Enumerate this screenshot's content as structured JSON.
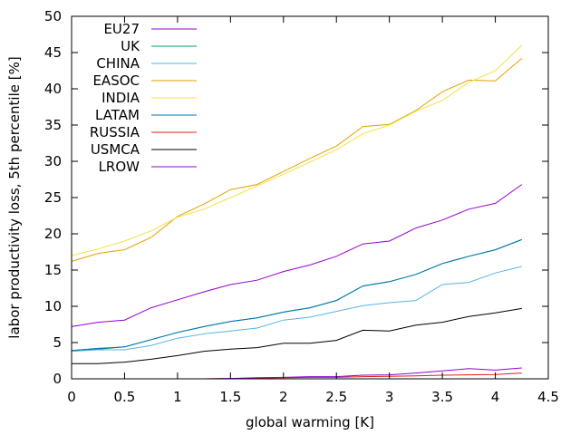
{
  "chart_data": {
    "type": "line",
    "title": "",
    "xlabel": "global warming [K]",
    "ylabel": "labor productivity loss, 5th percentile [%]",
    "xlim": [
      0,
      4.5
    ],
    "ylim": [
      0,
      50
    ],
    "xticks": [
      0,
      0.5,
      1,
      1.5,
      2,
      2.5,
      3,
      3.5,
      4,
      4.5
    ],
    "xtick_labels": [
      "0",
      "0.5",
      "1",
      "1.5",
      "2",
      "2.5",
      "3",
      "3.5",
      "4",
      "4.5"
    ],
    "yticks": [
      0,
      5,
      10,
      15,
      20,
      25,
      30,
      35,
      40,
      45,
      50
    ],
    "ytick_labels": [
      "0",
      "5",
      "10",
      "15",
      "20",
      "25",
      "30",
      "35",
      "40",
      "45",
      "50"
    ],
    "grid": false,
    "legend_placement": "top-left",
    "x": [
      0,
      0.25,
      0.5,
      0.75,
      1,
      1.25,
      1.5,
      1.75,
      2,
      2.25,
      2.5,
      2.75,
      3,
      3.25,
      3.5,
      3.75,
      4,
      4.25
    ],
    "series": [
      {
        "name": "EU27",
        "color": "#9400d3",
        "values": [
          7.2,
          7.8,
          8.1,
          9.8,
          10.9,
          12.0,
          13.0,
          13.6,
          14.8,
          15.7,
          16.9,
          18.6,
          19.0,
          20.8,
          21.9,
          23.4,
          24.2,
          26.8
        ]
      },
      {
        "name": "UK",
        "color": "#009e73",
        "values": [
          3.8,
          4.1,
          4.4,
          5.4,
          6.4,
          7.2,
          7.9,
          8.4,
          9.2,
          9.8,
          10.8,
          12.8,
          13.4,
          14.4,
          15.9,
          16.9,
          17.8,
          19.2
        ]
      },
      {
        "name": "CHINA",
        "color": "#56b4e9",
        "values": [
          3.8,
          4.0,
          4.0,
          4.6,
          5.6,
          6.2,
          6.6,
          7.0,
          8.1,
          8.5,
          9.3,
          10.1,
          10.5,
          10.8,
          13.0,
          13.3,
          14.6,
          15.5
        ]
      },
      {
        "name": "EASOC",
        "color": "#e69f00",
        "values": [
          16.2,
          17.3,
          17.8,
          19.5,
          22.4,
          24.1,
          26.1,
          26.8,
          28.6,
          30.4,
          32.1,
          34.8,
          35.1,
          37.0,
          39.6,
          41.2,
          41.1,
          44.2
        ]
      },
      {
        "name": "INDIA",
        "color": "#f0e442",
        "values": [
          17.0,
          17.9,
          19.0,
          20.4,
          22.3,
          23.4,
          25.0,
          26.6,
          28.2,
          29.9,
          31.6,
          33.8,
          35.0,
          36.9,
          38.4,
          40.9,
          42.5,
          46.0
        ]
      },
      {
        "name": "LATAM",
        "color": "#0072b2",
        "values": [
          3.9,
          4.2,
          4.4,
          5.4,
          6.4,
          7.2,
          7.9,
          8.4,
          9.2,
          9.8,
          10.8,
          12.8,
          13.4,
          14.4,
          15.9,
          16.9,
          17.8,
          19.2
        ]
      },
      {
        "name": "RUSSIA",
        "color": "#e51e10",
        "values": [
          0,
          0,
          0,
          0,
          0,
          0,
          0.05,
          0.1,
          0.15,
          0.2,
          0.2,
          0.3,
          0.35,
          0.4,
          0.5,
          0.55,
          0.6,
          0.8
        ]
      },
      {
        "name": "USMCA",
        "color": "#000000",
        "values": [
          2.1,
          2.1,
          2.3,
          2.7,
          3.2,
          3.8,
          4.1,
          4.3,
          4.9,
          4.9,
          5.3,
          6.7,
          6.6,
          7.4,
          7.8,
          8.6,
          9.1,
          9.7
        ]
      },
      {
        "name": "LROW",
        "color": "#9400d3",
        "values": [
          0,
          0,
          0,
          0,
          0,
          0,
          0.05,
          0.15,
          0.2,
          0.3,
          0.3,
          0.5,
          0.55,
          0.8,
          1.1,
          1.4,
          1.2,
          1.5
        ]
      }
    ]
  }
}
